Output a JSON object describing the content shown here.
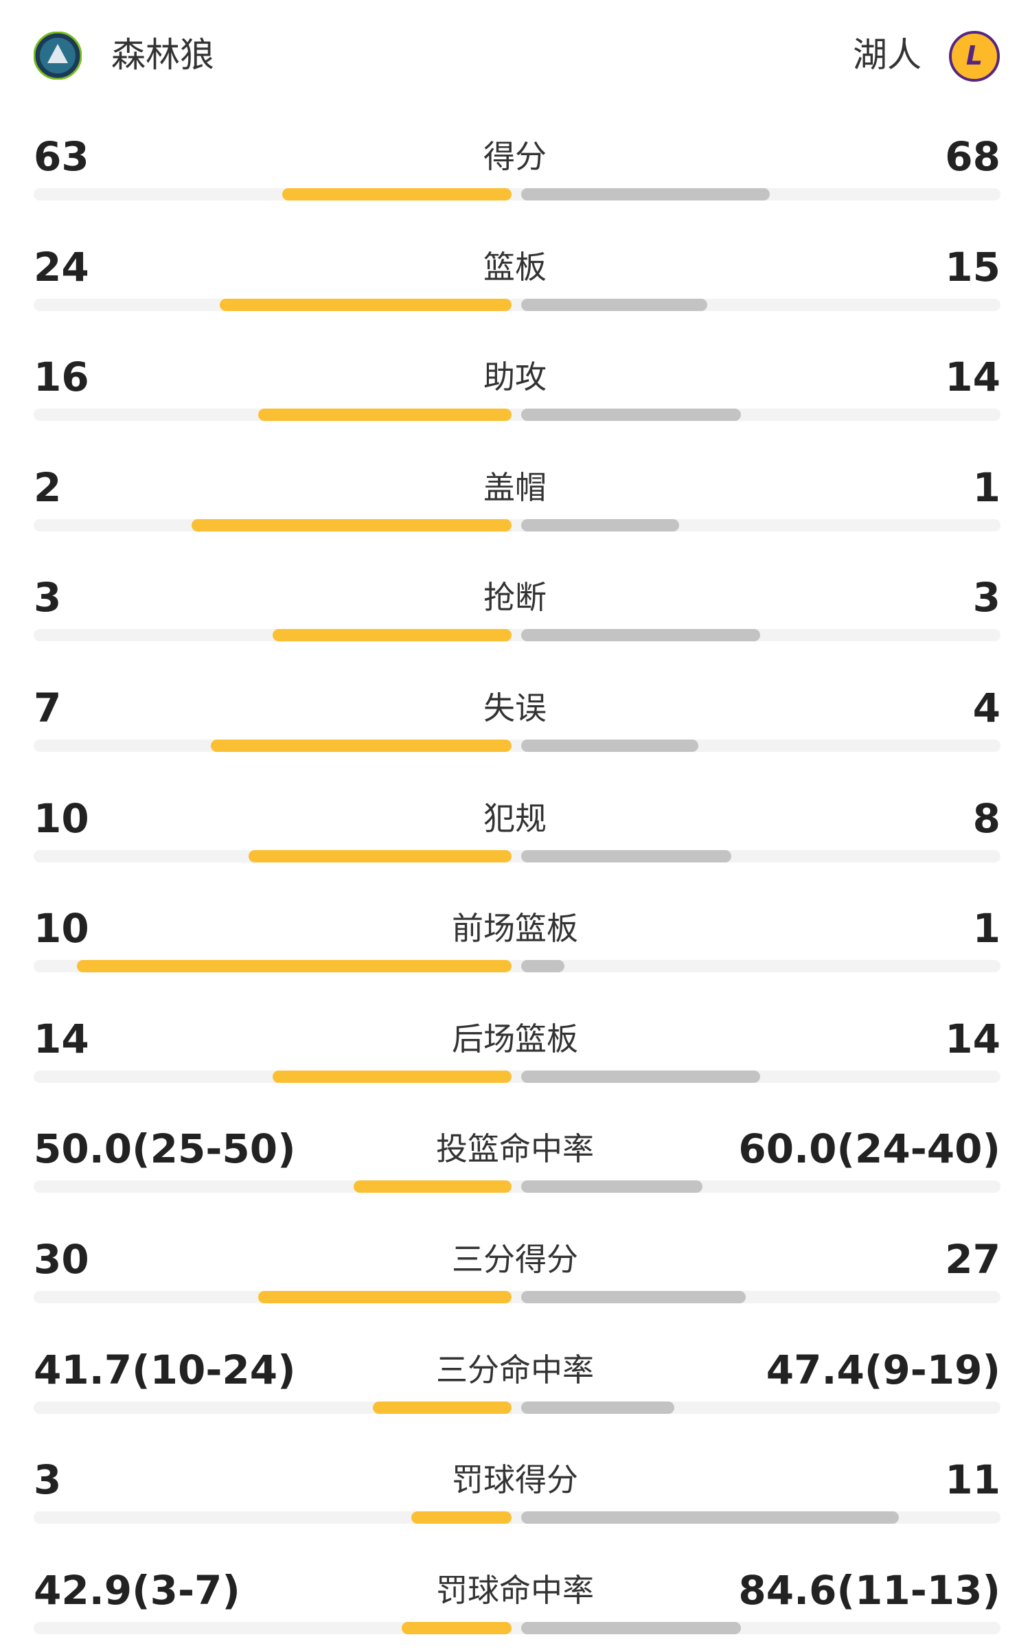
{
  "header": {
    "home_team": "森林狼",
    "away_team": "湖人"
  },
  "stats": [
    {
      "label": "得分",
      "home": "63",
      "away": "68",
      "home_bar": 48,
      "away_bar": 52
    },
    {
      "label": "篮板",
      "home": "24",
      "away": "15",
      "home_bar": 61,
      "away_bar": 39
    },
    {
      "label": "助攻",
      "home": "16",
      "away": "14",
      "home_bar": 53,
      "away_bar": 46
    },
    {
      "label": "盖帽",
      "home": "2",
      "away": "1",
      "home_bar": 67,
      "away_bar": 33
    },
    {
      "label": "抢断",
      "home": "3",
      "away": "3",
      "home_bar": 50,
      "away_bar": 50
    },
    {
      "label": "失误",
      "home": "7",
      "away": "4",
      "home_bar": 63,
      "away_bar": 37
    },
    {
      "label": "犯规",
      "home": "10",
      "away": "8",
      "home_bar": 55,
      "away_bar": 44
    },
    {
      "label": "前场篮板",
      "home": "10",
      "away": "1",
      "home_bar": 91,
      "away_bar": 9
    },
    {
      "label": "后场篮板",
      "home": "14",
      "away": "14",
      "home_bar": 50,
      "away_bar": 50
    },
    {
      "label": "投篮命中率",
      "home": "50.0(25-50)",
      "away": "60.0(24-40)",
      "home_bar": 33,
      "away_bar": 38
    },
    {
      "label": "三分得分",
      "home": "30",
      "away": "27",
      "home_bar": 53,
      "away_bar": 47
    },
    {
      "label": "三分命中率",
      "home": "41.7(10-24)",
      "away": "47.4(9-19)",
      "home_bar": 29,
      "away_bar": 32
    },
    {
      "label": "罚球得分",
      "home": "3",
      "away": "11",
      "home_bar": 21,
      "away_bar": 79
    },
    {
      "label": "罚球命中率",
      "home": "42.9(3-7)",
      "away": "84.6(11-13)",
      "home_bar": 23,
      "away_bar": 46
    }
  ]
}
